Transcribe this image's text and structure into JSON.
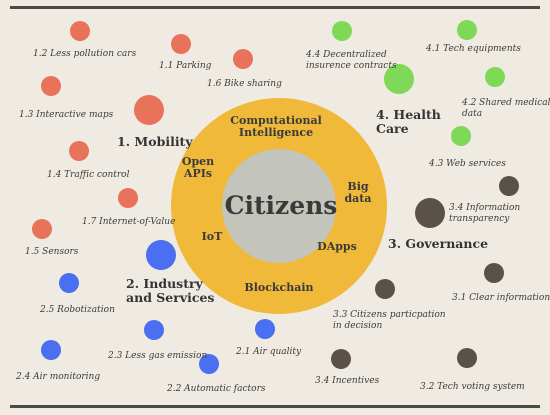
{
  "center": "Citizens",
  "ring_items": [
    {
      "lines": [
        "Computational",
        "Intelligence"
      ]
    },
    {
      "lines": [
        "Open",
        "APIs"
      ]
    },
    {
      "lines": [
        "Big",
        "data"
      ]
    },
    {
      "lines": [
        "IoT"
      ]
    },
    {
      "lines": [
        "DApps"
      ]
    },
    {
      "lines": [
        "Blockchain"
      ]
    }
  ],
  "categories": [
    {
      "lines": [
        "1. Mobility"
      ],
      "color": "#e8735a"
    },
    {
      "lines": [
        "2. Industry",
        "and Services"
      ],
      "color": "#4a6ff0"
    },
    {
      "lines": [
        "3. Governance"
      ],
      "color": "#5a5248"
    },
    {
      "lines": [
        "4. Health",
        "Care"
      ],
      "color": "#7ed957"
    }
  ],
  "items": [
    {
      "lines": [
        "1.1 Parking"
      ],
      "group": 0
    },
    {
      "lines": [
        "1.2 Less pollution cars"
      ],
      "group": 0
    },
    {
      "lines": [
        "1.3 Interactive maps"
      ],
      "group": 0
    },
    {
      "lines": [
        "1.4 Traffic control"
      ],
      "group": 0
    },
    {
      "lines": [
        "1.5 Sensors"
      ],
      "group": 0
    },
    {
      "lines": [
        "1.6 Bike sharing"
      ],
      "group": 0
    },
    {
      "lines": [
        "1.7 Internet-of-Value"
      ],
      "group": 0
    },
    {
      "lines": [
        "2.1 Air quality"
      ],
      "group": 1
    },
    {
      "lines": [
        "2.2 Automatic factors"
      ],
      "group": 1
    },
    {
      "lines": [
        "2.3 Less gas emission"
      ],
      "group": 1
    },
    {
      "lines": [
        "2.4 Air monitoring"
      ],
      "group": 1
    },
    {
      "lines": [
        "2.5 Robotization"
      ],
      "group": 1
    },
    {
      "lines": [
        "3.1 Clear information"
      ],
      "group": 2
    },
    {
      "lines": [
        "3.2 Tech voting system"
      ],
      "group": 2
    },
    {
      "lines": [
        "3.3 Citizens particpation",
        "in decision"
      ],
      "group": 2
    },
    {
      "lines": [
        "3.4 Incentives"
      ],
      "group": 2
    },
    {
      "lines": [
        "3.4 Information",
        "transparency"
      ],
      "group": 2
    },
    {
      "lines": [
        "4.1 Tech equipments"
      ],
      "group": 3
    },
    {
      "lines": [
        "4.2 Shared medical",
        "data"
      ],
      "group": 3
    },
    {
      "lines": [
        "4.3 Web services"
      ],
      "group": 3
    },
    {
      "lines": [
        "4.4 Decentralized",
        "insurence contracts"
      ],
      "group": 3
    }
  ],
  "colors": {
    "background": "#f0ebe2",
    "ring": "#f0b93a",
    "core": "#c3c4bb",
    "rule": "#4d4a45"
  }
}
